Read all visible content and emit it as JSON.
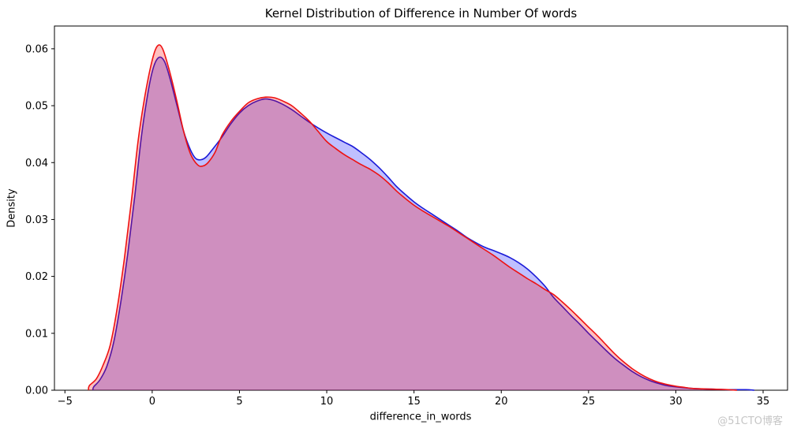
{
  "figure": {
    "watermark": "@51CTO博客",
    "background": "#ffffff"
  },
  "chart_data": {
    "type": "area",
    "subtype": "kernel-density",
    "title": "Kernel Distribution of Difference in Number Of words",
    "xlabel": "difference_in_words",
    "ylabel": "Density",
    "xlim": [
      -5.6,
      36.4
    ],
    "ylim": [
      0,
      0.064
    ],
    "xticks": [
      -5,
      0,
      5,
      10,
      15,
      20,
      25,
      30,
      35
    ],
    "yticks": [
      0.0,
      0.01,
      0.02,
      0.03,
      0.04,
      0.05,
      0.06
    ],
    "grid": false,
    "legend": "none",
    "frame_color": "#000000",
    "series": [
      {
        "name": "kde-blue",
        "line_color": "#1b1bd8",
        "fill_color": "#0000ff",
        "fill_opacity": 0.25,
        "points": [
          [
            -3.4,
            0
          ],
          [
            -3.35,
            0.0006
          ],
          [
            -3.0,
            0.0018
          ],
          [
            -2.6,
            0.0042
          ],
          [
            -2.2,
            0.0085
          ],
          [
            -1.8,
            0.0155
          ],
          [
            -1.4,
            0.024
          ],
          [
            -1.0,
            0.034
          ],
          [
            -0.6,
            0.045
          ],
          [
            -0.2,
            0.053
          ],
          [
            0.1,
            0.057
          ],
          [
            0.4,
            0.0585
          ],
          [
            0.7,
            0.0578
          ],
          [
            1.0,
            0.055
          ],
          [
            1.4,
            0.0503
          ],
          [
            1.8,
            0.0455
          ],
          [
            2.2,
            0.0422
          ],
          [
            2.5,
            0.0407
          ],
          [
            2.8,
            0.0405
          ],
          [
            3.1,
            0.041
          ],
          [
            3.5,
            0.0425
          ],
          [
            4.0,
            0.0445
          ],
          [
            4.5,
            0.0468
          ],
          [
            5.0,
            0.0487
          ],
          [
            5.5,
            0.05
          ],
          [
            6.0,
            0.0508
          ],
          [
            6.5,
            0.0512
          ],
          [
            7.0,
            0.0509
          ],
          [
            7.5,
            0.0502
          ],
          [
            8.0,
            0.0493
          ],
          [
            8.5,
            0.0482
          ],
          [
            9.0,
            0.0471
          ],
          [
            9.5,
            0.0461
          ],
          [
            10.0,
            0.0452
          ],
          [
            10.5,
            0.0444
          ],
          [
            11.0,
            0.0436
          ],
          [
            11.5,
            0.0428
          ],
          [
            12.0,
            0.0417
          ],
          [
            12.5,
            0.0405
          ],
          [
            13.0,
            0.0391
          ],
          [
            13.5,
            0.0375
          ],
          [
            14.0,
            0.0358
          ],
          [
            14.5,
            0.0344
          ],
          [
            15.0,
            0.0331
          ],
          [
            15.5,
            0.032
          ],
          [
            16.0,
            0.031
          ],
          [
            16.5,
            0.03
          ],
          [
            17.0,
            0.029
          ],
          [
            17.5,
            0.028
          ],
          [
            18.0,
            0.0269
          ],
          [
            18.5,
            0.026
          ],
          [
            19.0,
            0.0252
          ],
          [
            19.5,
            0.0246
          ],
          [
            20.0,
            0.024
          ],
          [
            20.5,
            0.0233
          ],
          [
            21.0,
            0.0224
          ],
          [
            21.5,
            0.0213
          ],
          [
            22.0,
            0.0199
          ],
          [
            22.5,
            0.0183
          ],
          [
            23.0,
            0.0163
          ],
          [
            23.5,
            0.0147
          ],
          [
            24.0,
            0.0131
          ],
          [
            24.5,
            0.0116
          ],
          [
            25.0,
            0.01
          ],
          [
            25.5,
            0.0085
          ],
          [
            26.0,
            0.007
          ],
          [
            26.5,
            0.0056
          ],
          [
            27.0,
            0.0044
          ],
          [
            27.5,
            0.0033
          ],
          [
            28.0,
            0.0024
          ],
          [
            28.5,
            0.0017
          ],
          [
            29.0,
            0.0012
          ],
          [
            29.5,
            0.0008
          ],
          [
            30.0,
            0.0006
          ],
          [
            31.0,
            0.0003
          ],
          [
            32.0,
            0.0002
          ],
          [
            33.0,
            0.0001
          ],
          [
            34.0,
            0.0001
          ],
          [
            34.5,
            0
          ]
        ]
      },
      {
        "name": "kde-red",
        "line_color": "#ee1212",
        "fill_color": "#ff0000",
        "fill_opacity": 0.25,
        "points": [
          [
            -3.65,
            0
          ],
          [
            -3.6,
            0.0008
          ],
          [
            -3.2,
            0.002
          ],
          [
            -2.8,
            0.0045
          ],
          [
            -2.4,
            0.008
          ],
          [
            -2.0,
            0.0145
          ],
          [
            -1.6,
            0.023
          ],
          [
            -1.2,
            0.033
          ],
          [
            -0.8,
            0.044
          ],
          [
            -0.4,
            0.052
          ],
          [
            0.0,
            0.058
          ],
          [
            0.3,
            0.0605
          ],
          [
            0.6,
            0.06
          ],
          [
            1.0,
            0.056
          ],
          [
            1.4,
            0.051
          ],
          [
            1.8,
            0.0455
          ],
          [
            2.2,
            0.0415
          ],
          [
            2.6,
            0.0396
          ],
          [
            2.9,
            0.0394
          ],
          [
            3.2,
            0.04
          ],
          [
            3.6,
            0.0418
          ],
          [
            4.0,
            0.0448
          ],
          [
            4.5,
            0.0472
          ],
          [
            5.0,
            0.049
          ],
          [
            5.5,
            0.0505
          ],
          [
            6.0,
            0.0512
          ],
          [
            6.5,
            0.0515
          ],
          [
            7.0,
            0.0514
          ],
          [
            7.5,
            0.0508
          ],
          [
            8.0,
            0.05
          ],
          [
            8.5,
            0.0487
          ],
          [
            9.0,
            0.0473
          ],
          [
            9.5,
            0.0455
          ],
          [
            10.0,
            0.0437
          ],
          [
            10.5,
            0.0425
          ],
          [
            11.0,
            0.0414
          ],
          [
            11.5,
            0.0405
          ],
          [
            12.0,
            0.0396
          ],
          [
            12.5,
            0.0388
          ],
          [
            13.0,
            0.0378
          ],
          [
            13.5,
            0.0365
          ],
          [
            14.0,
            0.035
          ],
          [
            14.5,
            0.0337
          ],
          [
            15.0,
            0.0325
          ],
          [
            15.5,
            0.0315
          ],
          [
            16.0,
            0.0306
          ],
          [
            16.5,
            0.0297
          ],
          [
            17.0,
            0.0288
          ],
          [
            17.5,
            0.0278
          ],
          [
            18.0,
            0.0268
          ],
          [
            18.5,
            0.0258
          ],
          [
            19.0,
            0.0248
          ],
          [
            19.5,
            0.0238
          ],
          [
            20.0,
            0.0227
          ],
          [
            20.5,
            0.0216
          ],
          [
            21.0,
            0.0206
          ],
          [
            21.5,
            0.0196
          ],
          [
            22.0,
            0.0187
          ],
          [
            22.5,
            0.0177
          ],
          [
            23.0,
            0.0168
          ],
          [
            23.5,
            0.0155
          ],
          [
            24.0,
            0.0141
          ],
          [
            24.5,
            0.0126
          ],
          [
            25.0,
            0.0111
          ],
          [
            25.5,
            0.0096
          ],
          [
            26.0,
            0.008
          ],
          [
            26.5,
            0.0064
          ],
          [
            27.0,
            0.005
          ],
          [
            27.5,
            0.0038
          ],
          [
            28.0,
            0.0028
          ],
          [
            28.5,
            0.002
          ],
          [
            29.0,
            0.0014
          ],
          [
            29.5,
            0.001
          ],
          [
            30.0,
            0.0007
          ],
          [
            30.5,
            0.0005
          ],
          [
            31.0,
            0.0003
          ],
          [
            32.0,
            0.0002
          ],
          [
            33.0,
            0.0001
          ],
          [
            33.5,
            0
          ]
        ]
      }
    ]
  }
}
